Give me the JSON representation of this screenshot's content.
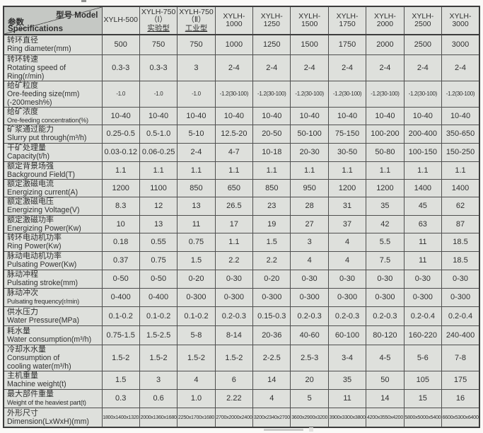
{
  "table": {
    "corner": {
      "top_right": "型号 Model",
      "bottom_left_zh": "参数",
      "bottom_left_en": "Specifications"
    },
    "models": [
      {
        "key": "xylh-500",
        "lines": [
          "XYLH-500"
        ]
      },
      {
        "key": "xylh-750-i",
        "lines": [
          "XYLH-750",
          "（Ⅰ）",
          "实验型"
        ],
        "underline_last": true
      },
      {
        "key": "xylh-750-ii",
        "lines": [
          "XYLH-750",
          "（Ⅱ）",
          "工业型"
        ],
        "underline_last": true
      },
      {
        "key": "xylh-1000",
        "lines": [
          "XYLH-1000"
        ]
      },
      {
        "key": "xylh-1250",
        "lines": [
          "XYLH-1250"
        ]
      },
      {
        "key": "xylh-1500",
        "lines": [
          "XYLH-1500"
        ]
      },
      {
        "key": "xylh-1750",
        "lines": [
          "XYLH-1750"
        ]
      },
      {
        "key": "xylh-2000",
        "lines": [
          "XYLH-2000"
        ]
      },
      {
        "key": "xylh-2500",
        "lines": [
          "XYLH-2500"
        ]
      },
      {
        "key": "xylh-3000",
        "lines": [
          "XYLH-3000"
        ]
      }
    ],
    "rows": [
      {
        "id": "ring-diameter",
        "h": 28,
        "label_lines": [
          "转环直径",
          "Ring diameter(mm)"
        ],
        "values": [
          "500",
          "750",
          "750",
          "1000",
          "1250",
          "1500",
          "1750",
          "2000",
          "2500",
          "3000"
        ]
      },
      {
        "id": "rotating-speed",
        "h": 36,
        "label_lines": [
          "转环转速",
          "Rotating speed of",
          "Ring(r/min)"
        ],
        "values": [
          "0.3-3",
          "0.3-3",
          "3",
          "2-4",
          "2-4",
          "2-4",
          "2-4",
          "2-4",
          "2-4",
          "2-4"
        ]
      },
      {
        "id": "ore-feeding-size",
        "h": 36,
        "small_values": true,
        "label_lines": [
          "给矿粒度",
          "Ore-feeding size(mm)",
          "(-200mesh%)"
        ],
        "values": [
          "-1.0",
          "-1.0",
          "-1.0",
          "-1.2(30-100)",
          "-1.2(30-100)",
          "-1.2(30-100)",
          "-1.2(30-100)",
          "-1.2(30-100)",
          "-1.2(30-100)",
          "-1.2(30-100)"
        ]
      },
      {
        "id": "ore-feeding-concentration",
        "h": 24,
        "condensed_label": true,
        "label_lines": [
          "给矿浓度",
          "Ore-feeding concentration(%)"
        ],
        "values": [
          "10-40",
          "10-40",
          "10-40",
          "10-40",
          "10-40",
          "10-40",
          "10-40",
          "10-40",
          "10-40",
          "10-40"
        ]
      },
      {
        "id": "slurry-put-through",
        "h": 26,
        "label_lines": [
          "矿浆通过能力",
          "Slurry put through(m³/h)"
        ],
        "values": [
          "0.25-0.5",
          "0.5-1.0",
          "5-10",
          "12.5-20",
          "20-50",
          "50-100",
          "75-150",
          "100-200",
          "200-400",
          "350-650"
        ]
      },
      {
        "id": "capacity",
        "h": 26,
        "label_lines": [
          "干矿处理量",
          "Capacity(t/h)"
        ],
        "values": [
          "0.03-0.12",
          "0.06-0.25",
          "2-4",
          "4-7",
          "10-18",
          "20-30",
          "30-50",
          "50-80",
          "100-150",
          "150-250"
        ]
      },
      {
        "id": "background-field",
        "h": 24,
        "label_lines": [
          "额定背景场强",
          "Background Field(T)"
        ],
        "values": [
          "1.1",
          "1.1",
          "1.1",
          "1.1",
          "1.1",
          "1.1",
          "1.1",
          "1.1",
          "1.1",
          "1.1"
        ]
      },
      {
        "id": "energizing-current",
        "h": 24,
        "label_lines": [
          "额定激磁电流",
          "Energizing current(A)"
        ],
        "values": [
          "1200",
          "1100",
          "850",
          "650",
          "850",
          "950",
          "1200",
          "1200",
          "1400",
          "1400"
        ]
      },
      {
        "id": "energizing-voltage",
        "h": 26,
        "label_lines": [
          "额定激磁电压",
          "Energizing Voltage(V)"
        ],
        "values": [
          "8.3",
          "12",
          "13",
          "26.5",
          "23",
          "28",
          "31",
          "35",
          "45",
          "62"
        ]
      },
      {
        "id": "energizing-power",
        "h": 24,
        "label_lines": [
          "额定激磁功率",
          "Energizing Power(Kw)"
        ],
        "values": [
          "10",
          "13",
          "11",
          "17",
          "19",
          "27",
          "37",
          "42",
          "63",
          "87"
        ]
      },
      {
        "id": "ring-power",
        "h": 26,
        "label_lines": [
          "转环电动机功率",
          "Ring Power(Kw)"
        ],
        "values": [
          "0.18",
          "0.55",
          "0.75",
          "1.1",
          "1.5",
          "3",
          "4",
          "5.5",
          "11",
          "18.5"
        ]
      },
      {
        "id": "pulsating-power",
        "h": 26,
        "label_lines": [
          "脉动电动机功率",
          "Pulsating Power(Kw)"
        ],
        "values": [
          "0.37",
          "0.75",
          "1.5",
          "2.2",
          "2.2",
          "4",
          "4",
          "7.5",
          "11",
          "18.5"
        ]
      },
      {
        "id": "pulsating-stroke",
        "h": 26,
        "label_lines": [
          "脉动冲程",
          "Pulsating stroke(mm)"
        ],
        "values": [
          "0-50",
          "0-50",
          "0-20",
          "0-30",
          "0-20",
          "0-30",
          "0-30",
          "0-30",
          "0-30",
          "0-30"
        ]
      },
      {
        "id": "pulsating-frequency",
        "h": 26,
        "condensed_label": true,
        "label_lines": [
          "脉动冲次",
          "Pulsating frequency(r/min)"
        ],
        "values": [
          "0-400",
          "0-400",
          "0-300",
          "0-300",
          "0-300",
          "0-300",
          "0-300",
          "0-300",
          "0-300",
          "0-300"
        ]
      },
      {
        "id": "water-pressure",
        "h": 27,
        "label_lines": [
          "供水压力",
          "Water Pressure(MPa)"
        ],
        "values": [
          "0.1-0.2",
          "0.1-0.2",
          "0.1-0.2",
          "0.2-0.3",
          "0.15-0.3",
          "0.2-0.3",
          "0.2-0.3",
          "0.2-0.3",
          "0.2-0.4",
          "0.2-0.4"
        ]
      },
      {
        "id": "water-consumption",
        "h": 27,
        "label_lines": [
          "耗水量",
          "Water consumption(m³/h)"
        ],
        "values": [
          "0.75-1.5",
          "1.5-2.5",
          "5-8",
          "8-14",
          "20-36",
          "40-60",
          "60-100",
          "80-120",
          "160-220",
          "240-400"
        ]
      },
      {
        "id": "cooling-water",
        "h": 36,
        "label_lines": [
          "冷却水水量",
          "Consumption of",
          "cooling water(m³/h)"
        ],
        "values": [
          "1.5-2",
          "1.5-2",
          "1.5-2",
          "1.5-2",
          "2-2.5",
          "2.5-3",
          "3-4",
          "4-5",
          "5-6",
          "7-8"
        ]
      },
      {
        "id": "machine-weight",
        "h": 26,
        "label_lines": [
          "主机重量",
          "Machine weight(t)"
        ],
        "values": [
          "1.5",
          "3",
          "4",
          "6",
          "14",
          "20",
          "35",
          "50",
          "105",
          "175"
        ]
      },
      {
        "id": "heaviest-part-weight",
        "h": 26,
        "condensed_label": true,
        "label_lines": [
          "最大部件重量",
          "Weight of the heaviest part(t)"
        ],
        "values": [
          "0.3",
          "0.6",
          "1.0",
          "2.22",
          "4",
          "5",
          "11",
          "14",
          "15",
          "16"
        ]
      },
      {
        "id": "dimension",
        "h": 28,
        "tiny_values": true,
        "label_lines": [
          "外形尺寸",
          "Dimension(LxWxH)(mm)"
        ],
        "values": [
          "1800x1400x1320",
          "2000x1360x1680",
          "2250x1700x1680",
          "2700x2000x2400",
          "3200x2340x2700",
          "3600x2900x3200",
          "3900x3300x3800",
          "4200x3550x4200",
          "5800x5000x5400",
          "6600x5300x6400"
        ]
      }
    ]
  },
  "colors": {
    "header_bg": "#c5c8c4",
    "cell_bg": "#dee0dc",
    "border": "#4f4f4f",
    "text": "#303030",
    "page_bg": "#faf9f7"
  }
}
